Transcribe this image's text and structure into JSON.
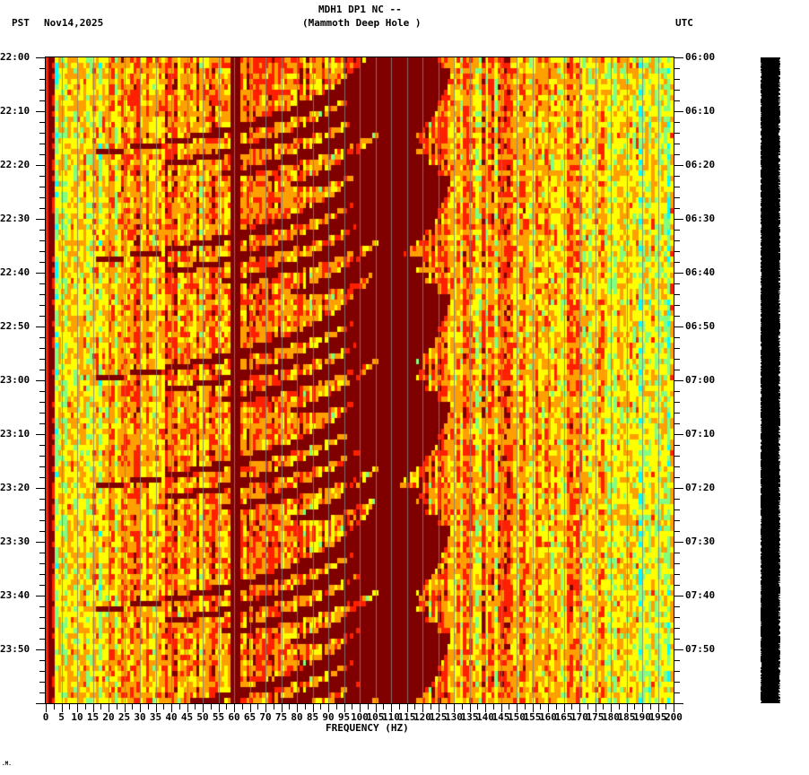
{
  "header": {
    "station_line": "MDH1 DP1 NC --",
    "station_name": "(Mammoth Deep Hole )",
    "left_tz": "PST",
    "date": "Nov14,2025",
    "right_tz": "UTC"
  },
  "footer_mark": ".M.",
  "chart_data": {
    "type": "heatmap",
    "title": "MDH1 DP1 NC -- (Mammoth Deep Hole )",
    "xlabel": "FREQUENCY (HZ)",
    "ylabel_left": "PST",
    "ylabel_right": "UTC",
    "xlim": [
      0,
      200
    ],
    "x_ticks": [
      "0",
      "5",
      "10",
      "15",
      "20",
      "25",
      "30",
      "35",
      "40",
      "45",
      "50",
      "55",
      "60",
      "65",
      "70",
      "75",
      "80",
      "85",
      "90",
      "95",
      "100",
      "105",
      "110",
      "115",
      "120",
      "125",
      "130",
      "135",
      "140",
      "145",
      "150",
      "155",
      "160",
      "165",
      "170",
      "175",
      "180",
      "185",
      "190",
      "195",
      "200"
    ],
    "y_ticks_left": [
      "22:00",
      "22:10",
      "22:20",
      "22:30",
      "22:40",
      "22:50",
      "23:00",
      "23:10",
      "23:20",
      "23:30",
      "23:40",
      "23:50"
    ],
    "y_ticks_right": [
      "06:00",
      "06:10",
      "06:20",
      "06:30",
      "06:40",
      "06:50",
      "07:00",
      "07:10",
      "07:20",
      "07:30",
      "07:40",
      "07:50"
    ],
    "time_span_minutes": 120,
    "colormap": [
      "#00ffff",
      "#80ff80",
      "#ffff00",
      "#ffa000",
      "#ff2000",
      "#800000"
    ],
    "features": {
      "persistent_line_hz": 60,
      "low_freq_band_hz": [
        0,
        3
      ],
      "chirp_sweeps": "repeating curved high-energy bands every ~20 min, rising from ~20 Hz to ~130 Hz with harmonics",
      "sweep_start_minutes": [
        -5,
        15,
        37,
        57,
        80,
        100
      ]
    }
  }
}
